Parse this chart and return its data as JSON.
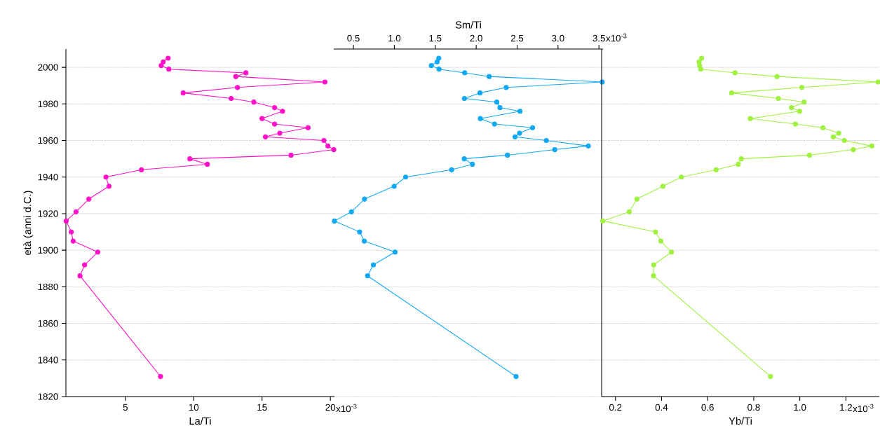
{
  "chart_data": [
    {
      "type": "line",
      "xlabel": "La/Ti",
      "ylabel": "età (anni d.C.)",
      "xlim": [
        0.65,
        20.3
      ],
      "xticks": [
        5,
        10,
        15,
        20
      ],
      "annotations": [
        "x10$^{-3}$"
      ],
      "ylim": [
        1820,
        2010
      ],
      "yticks": [
        1820,
        1840,
        1860,
        1880,
        1900,
        1920,
        1940,
        1960,
        1980,
        2000
      ],
      "grid": "y",
      "marker": "circle",
      "line_style": "solid",
      "series": [
        {
          "color": "#ff10c8",
          "x": [
            8.13,
            7.77,
            7.62,
            8.18,
            13.82,
            13.08,
            19.6,
            13.2,
            9.23,
            12.74,
            14.4,
            15.92,
            16.5,
            15.0,
            15.92,
            18.37,
            16.3,
            15.25,
            19.53,
            19.82,
            20.25,
            17.12,
            9.72,
            11.0,
            6.18,
            3.58,
            3.8,
            2.33,
            1.39,
            0.67,
            1.04,
            1.18,
            2.98,
            2.02,
            1.68,
            7.57
          ],
          "values": [
            2005,
            2003,
            2001,
            1999,
            1997,
            1995,
            1992,
            1989,
            1986,
            1983,
            1981,
            1978,
            1976,
            1972,
            1969,
            1967,
            1964,
            1962,
            1960,
            1957,
            1955,
            1952,
            1950,
            1947,
            1944,
            1940,
            1935,
            1928,
            1921,
            1916,
            1910,
            1905,
            1899,
            1892,
            1886,
            1831
          ]
        }
      ]
    },
    {
      "type": "line",
      "xlabel": "Sm/Ti",
      "xlim": [
        0.26,
        3.55
      ],
      "xticks": [
        0.5,
        {
          "value": 1,
          "label": "1.0"
        },
        1.5,
        {
          "value": 2,
          "label": "2.0"
        },
        2.5,
        {
          "value": 3,
          "label": "3.0"
        },
        3.5
      ],
      "annotations": [
        "x10$^{-3}$"
      ],
      "ylim": [
        1820,
        2010
      ],
      "yticks": [
        1820,
        1840,
        1860,
        1880,
        1900,
        1920,
        1940,
        1960,
        1980,
        2000
      ],
      "grid": "y",
      "marker": "circle",
      "line_style": "solid",
      "tick_labels": "x",
      "series": [
        {
          "color": "#10a8f0",
          "x": [
            1.543,
            1.523,
            1.452,
            1.546,
            1.86,
            2.159,
            3.54,
            2.367,
            2.046,
            1.856,
            2.252,
            2.29,
            2.535,
            2.051,
            2.224,
            2.689,
            2.53,
            2.475,
            2.857,
            3.37,
            2.96,
            2.382,
            1.854,
            1.954,
            1.7,
            1.138,
            0.998,
            0.636,
            0.476,
            0.268,
            0.576,
            0.633,
            1.009,
            0.744,
            0.673,
            2.487
          ],
          "values": [
            2005,
            2003,
            2001,
            1999,
            1997,
            1995,
            1992,
            1989,
            1986,
            1983,
            1981,
            1978,
            1976,
            1972,
            1969,
            1967,
            1964,
            1962,
            1960,
            1957,
            1955,
            1952,
            1950,
            1947,
            1944,
            1940,
            1935,
            1928,
            1921,
            1916,
            1910,
            1905,
            1899,
            1892,
            1886,
            1831
          ]
        }
      ]
    },
    {
      "type": "line",
      "xlabel": "Yb/Ti",
      "xlim": [
        0.14,
        1.345
      ],
      "xticks": [
        0.2,
        0.4,
        0.6,
        0.8,
        {
          "value": 1,
          "label": "1.0"
        },
        1.2
      ],
      "annotations": [
        "x10$^{-3}$"
      ],
      "ylim": [
        1820,
        2010
      ],
      "yticks": [
        1820,
        1840,
        1860,
        1880,
        1900,
        1920,
        1940,
        1960,
        1980,
        2000
      ],
      "grid": "y",
      "marker": "circle",
      "line_style": "solid",
      "tick_labels": "x",
      "series": [
        {
          "color": "#a0f040",
          "x": [
            0.574,
            0.563,
            0.565,
            0.57,
            0.719,
            0.901,
            1.34,
            1.009,
            0.704,
            0.907,
            1.019,
            0.964,
            0.999,
            0.785,
            0.981,
            1.1,
            1.169,
            1.145,
            1.193,
            1.313,
            1.232,
            1.042,
            0.746,
            0.733,
            0.637,
            0.486,
            0.406,
            0.293,
            0.26,
            0.145,
            0.374,
            0.397,
            0.443,
            0.366,
            0.365,
            0.873
          ],
          "values": [
            2005,
            2003,
            2001,
            1999,
            1997,
            1995,
            1992,
            1989,
            1986,
            1983,
            1981,
            1978,
            1976,
            1972,
            1969,
            1967,
            1964,
            1962,
            1960,
            1957,
            1955,
            1952,
            1950,
            1947,
            1944,
            1940,
            1935,
            1928,
            1921,
            1916,
            1910,
            1905,
            1899,
            1892,
            1886,
            1831
          ]
        }
      ]
    }
  ]
}
